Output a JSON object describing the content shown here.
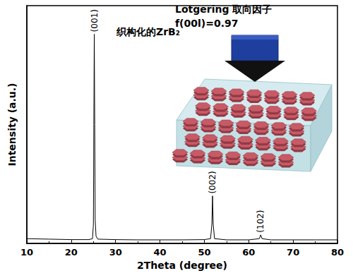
{
  "chart_data": {
    "type": "line",
    "xlabel": "2Theta (degree)",
    "ylabel": "Intensity (a.u.)",
    "x": [
      10,
      15,
      20,
      24,
      24.8,
      25.0,
      25.1,
      25.2,
      25.3,
      25.4,
      25.6,
      26,
      30,
      35,
      40,
      45,
      50,
      51.4,
      51.7,
      51.85,
      52.0,
      52.3,
      55,
      60,
      62.4,
      62.7,
      63,
      65,
      70,
      75,
      80
    ],
    "values": [
      2.0,
      1.8,
      1.6,
      1.6,
      2.0,
      8,
      50,
      88,
      50,
      10,
      3,
      1.8,
      1.6,
      1.5,
      1.5,
      1.5,
      1.6,
      2.0,
      8,
      20,
      8,
      2.0,
      1.5,
      1.5,
      2.0,
      3.6,
      2.0,
      1.5,
      1.5,
      1.5,
      1.5
    ],
    "color": "#000000",
    "marker": "none",
    "xlim": [
      10,
      80
    ],
    "xticks": [
      10,
      20,
      30,
      40,
      50,
      60,
      70,
      80
    ],
    "ylim": [
      0,
      100
    ],
    "tick_labels": "x",
    "grid": false,
    "peak_labels": [
      {
        "text": "(001)",
        "x": 25.2,
        "y": 88
      },
      {
        "text": "(002)",
        "x": 51.85,
        "y": 20
      },
      {
        "text": "(102)",
        "x": 62.7,
        "y": 3.6
      }
    ],
    "annotations": [
      "织构化的ZrB₂",
      "Lotgering 取向因子",
      "f(00l)=0.97"
    ]
  }
}
